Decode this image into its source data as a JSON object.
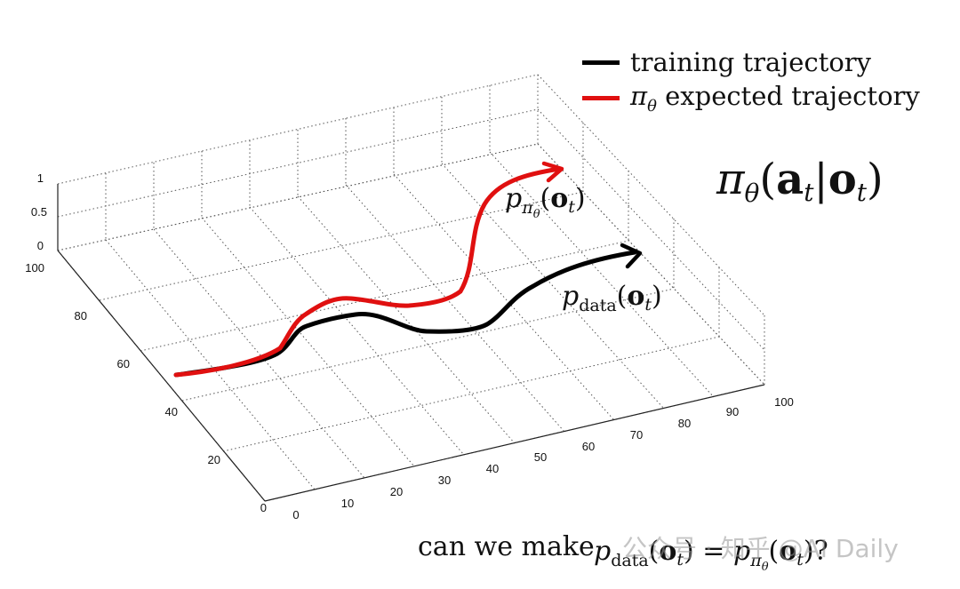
{
  "legend": {
    "items": [
      {
        "label": "training trajectory",
        "color": "#000000"
      },
      {
        "label": "expected trajectory",
        "symbol": "π",
        "subscript": "θ",
        "color": "#e01010"
      }
    ]
  },
  "policy_label": {
    "pi": "π",
    "theta": "θ",
    "a": "a",
    "o": "o",
    "t": "t"
  },
  "trajectory_labels": {
    "red": {
      "p": "p",
      "pi": "π",
      "theta": "θ",
      "o": "o",
      "t": "t"
    },
    "black": {
      "p": "p",
      "sub": "data",
      "o": "o",
      "t": "t"
    }
  },
  "axes": {
    "z_ticks": [
      "1",
      "0.5",
      "0"
    ],
    "y_ticks": [
      "100",
      "80",
      "60",
      "40",
      "20",
      "0"
    ],
    "x_ticks": [
      "0",
      "10",
      "20",
      "30",
      "40",
      "50",
      "60",
      "70",
      "80",
      "90",
      "100"
    ]
  },
  "caption": {
    "prefix": "can we make ",
    "suffix": "?"
  },
  "watermark": {
    "text": "公众号 · 知乎 @AI Daily"
  },
  "colors": {
    "black_traj": "#000000",
    "red_traj": "#e01010",
    "grid": "#555555"
  }
}
